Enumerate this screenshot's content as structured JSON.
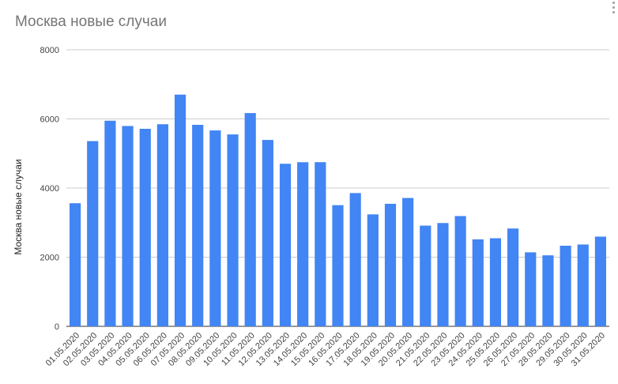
{
  "chart_data": {
    "type": "bar",
    "title": "Москва новые случаи",
    "xlabel": "",
    "ylabel": "Москва новые случаи",
    "ylim": [
      0,
      8000
    ],
    "yticks": [
      "0",
      "2000",
      "4000",
      "6000",
      "8000"
    ],
    "grid": true,
    "legend": "none",
    "bar_color": "#4285f4",
    "categories": [
      "01.05.2020",
      "02.05.2020",
      "03.05.2020",
      "04.05.2020",
      "05.05.2020",
      "06.05.2020",
      "07.05.2020",
      "08.05.2020",
      "09.05.2020",
      "10.05.2020",
      "11.05.2020",
      "12.05.2020",
      "13.05.2020",
      "14.05.2020",
      "15.05.2020",
      "16.05.2020",
      "17.05.2020",
      "18.05.2020",
      "19.05.2020",
      "20.05.2020",
      "21.05.2020",
      "22.05.2020",
      "23.05.2020",
      "24.05.2020",
      "25.05.2020",
      "26.05.2020",
      "27.05.2020",
      "28.05.2020",
      "29.05.2020",
      "30.05.2020",
      "31.05.2020"
    ],
    "values": [
      3561,
      5358,
      5948,
      5795,
      5714,
      5846,
      6703,
      5829,
      5667,
      5551,
      6169,
      5392,
      4703,
      4748,
      4749,
      3505,
      3855,
      3238,
      3545,
      3713,
      2913,
      2988,
      3190,
      2516,
      2548,
      2830,
      2140,
      2054,
      2332,
      2367,
      2595
    ]
  }
}
